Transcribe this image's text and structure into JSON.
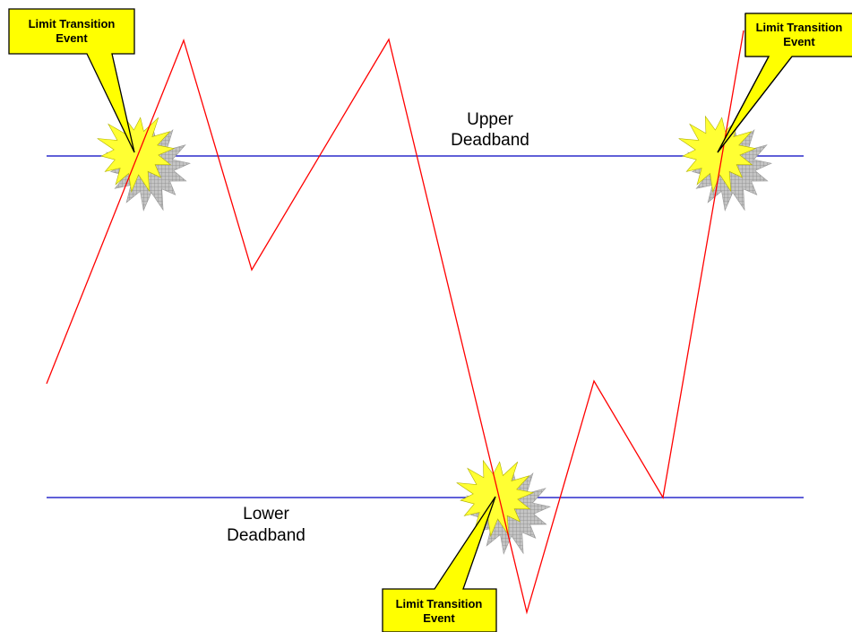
{
  "diagram": {
    "colors": {
      "deadband_line": "#0000c0",
      "signal_line": "#ff0000",
      "callout_fill": "#ffff00",
      "callout_stroke": "#000000",
      "starburst_fill": "#ffff33",
      "starburst_shadow": "#a8a8a8"
    },
    "upper_deadband": {
      "label_line1": "Upper",
      "label_line2": "Deadband"
    },
    "lower_deadband": {
      "label_line1": "Lower",
      "label_line2": "Deadband"
    },
    "events": [
      {
        "icon": "starburst-icon",
        "label_line1": "Limit Transition",
        "label_line2": "Event"
      },
      {
        "icon": "starburst-icon",
        "label_line1": "Limit Transition",
        "label_line2": "Event"
      },
      {
        "icon": "starburst-icon",
        "label_line1": "Limit Transition",
        "label_line2": "Event"
      }
    ]
  }
}
